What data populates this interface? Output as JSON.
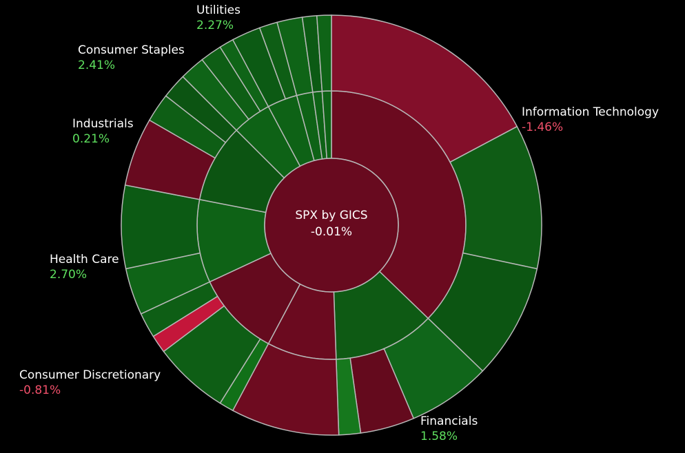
{
  "chart_data": {
    "type": "sunburst",
    "title": "SPX by GICS",
    "center_value": -0.01,
    "center_value_label": "-0.01%",
    "center_color": "#680a1f",
    "positive_label_color": "#5fe05f",
    "negative_label_color": "#f0506a",
    "sectors": [
      {
        "name": "Information Technology",
        "value": -1.46,
        "value_label": "-1.46%",
        "color": "#6b0a1f",
        "weight": 134,
        "children": [
          {
            "color": "#830f2a",
            "weight": 62
          },
          {
            "color": "#0f5c15",
            "weight": 40
          },
          {
            "color": "#0c5512",
            "weight": 32
          }
        ]
      },
      {
        "name": "Financials",
        "value": 1.58,
        "value_label": "1.58%",
        "color": "#0e5a14",
        "weight": 44,
        "children": [
          {
            "color": "#10661a",
            "weight": 23
          },
          {
            "color": "#640a1d",
            "weight": 15
          },
          {
            "color": "#16781d",
            "weight": 6
          }
        ]
      },
      {
        "name": null,
        "value": null,
        "value_label": null,
        "color": "#6b0a1f",
        "weight": 30,
        "children": [
          {
            "color": "#6e0b20",
            "weight": 30
          }
        ]
      },
      {
        "name": "Consumer Discretionary",
        "value": -0.81,
        "value_label": "-0.81%",
        "color": "#650a1e",
        "weight": 37,
        "children": [
          {
            "color": "#117018",
            "weight": 4
          },
          {
            "color": "#0e5e15",
            "weight": 21
          },
          {
            "color": "#c4163a",
            "weight": 5
          },
          {
            "color": "#0e5e15",
            "weight": 7
          }
        ]
      },
      {
        "name": "Health Care",
        "value": 2.7,
        "value_label": "2.70%",
        "color": "#0e6216",
        "weight": 36,
        "children": [
          {
            "color": "#0f6417",
            "weight": 13
          },
          {
            "color": "#0c5a14",
            "weight": 23
          }
        ]
      },
      {
        "name": "Industrials",
        "value": 0.21,
        "value_label": "0.21%",
        "color": "#0c5412",
        "weight": 34,
        "children": [
          {
            "color": "#680a1f",
            "weight": 19
          },
          {
            "color": "#0e5e15",
            "weight": 8
          },
          {
            "color": "#0c5412",
            "weight": 7
          }
        ]
      },
      {
        "name": "Consumer Staples",
        "value": 2.41,
        "value_label": "2.41%",
        "color": "#0e6216",
        "weight": 17,
        "children": [
          {
            "color": "#0f6417",
            "weight": 7
          },
          {
            "color": "#0e5e15",
            "weight": 6
          },
          {
            "color": "#0f6417",
            "weight": 4
          }
        ]
      },
      {
        "name": "Utilities",
        "value": 2.27,
        "value_label": "2.27%",
        "color": "#0e6216",
        "weight": 13,
        "children": [
          {
            "color": "#0c5a14",
            "weight": 8
          },
          {
            "color": "#0e5e15",
            "weight": 5
          }
        ]
      },
      {
        "name": null,
        "value": null,
        "value_label": null,
        "color": "#0e6216",
        "weight": 7,
        "children": [
          {
            "color": "#0f6417",
            "weight": 7
          }
        ]
      },
      {
        "name": null,
        "value": null,
        "value_label": null,
        "color": "#0e6216",
        "weight": 4,
        "children": [
          {
            "color": "#0c5a14",
            "weight": 4
          }
        ]
      },
      {
        "name": null,
        "value": null,
        "value_label": null,
        "color": "#0e6216",
        "weight": 4,
        "children": [
          {
            "color": "#0f6417",
            "weight": 4
          }
        ]
      }
    ]
  }
}
